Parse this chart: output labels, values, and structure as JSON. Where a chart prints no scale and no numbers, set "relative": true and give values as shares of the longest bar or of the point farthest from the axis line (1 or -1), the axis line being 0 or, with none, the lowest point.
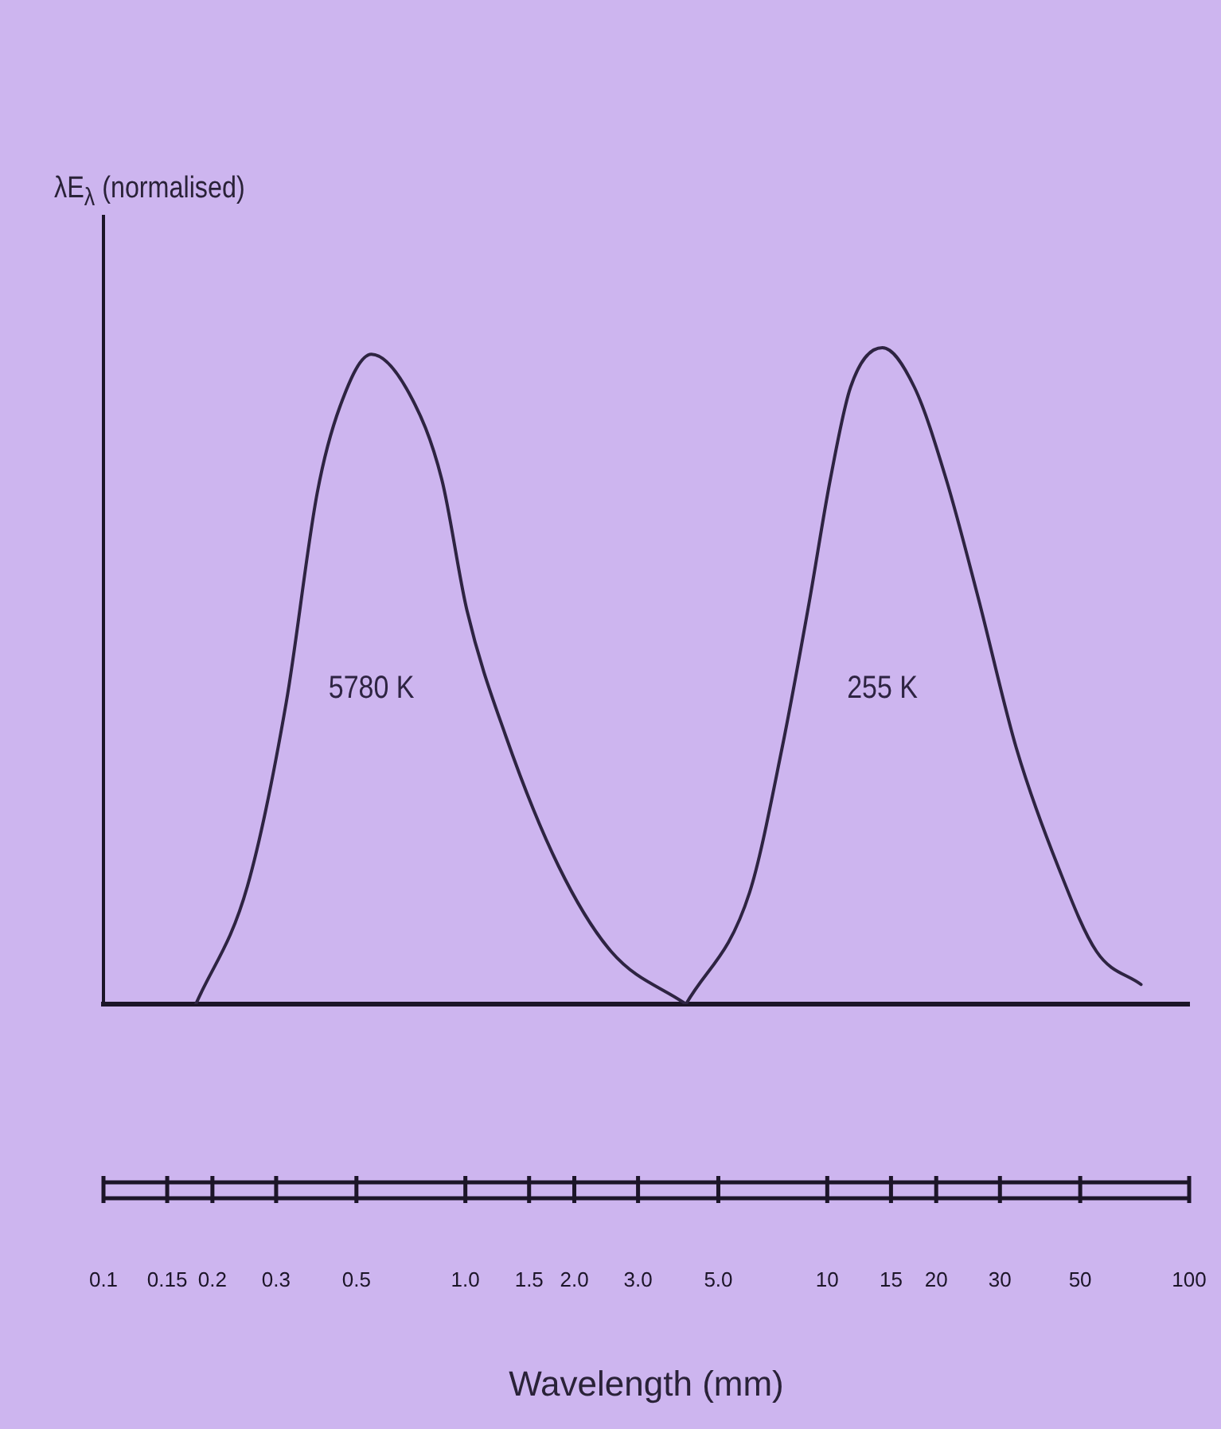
{
  "chart_data": {
    "type": "line",
    "ylabel": "λE$_{λ}$ (normalised)",
    "xlabel": "Wavelength (mm)",
    "relative": true,
    "log": "x",
    "xlim": [
      0.1,
      100
    ],
    "xticks": [
      0.1,
      0.15,
      0.2,
      0.3,
      0.5,
      {
        "value": 1,
        "label": "1.0"
      },
      1.5,
      {
        "value": 2,
        "label": "2.0"
      },
      {
        "value": 3,
        "label": "3.0"
      },
      {
        "value": 5,
        "label": "5.0"
      },
      10,
      15,
      20,
      30,
      50,
      100
    ],
    "series": [
      {
        "name": "5780 K",
        "color": "#2e2442",
        "x": [
          0.18,
          0.25,
          0.32,
          0.39,
          0.45,
          0.55,
          0.7,
          0.86,
          1.01,
          1.29,
          1.81,
          2.53,
          4.07
        ],
        "values": [
          0,
          0.18,
          0.46,
          0.78,
          0.91,
          0.99,
          0.93,
          0.8,
          0.6,
          0.41,
          0.21,
          0.08,
          0
        ]
      },
      {
        "name": "255 K",
        "color": "#2e2442",
        "x": [
          4.07,
          6.1,
          7.5,
          8.9,
          10.2,
          11.6,
          14.2,
          17.4,
          21.3,
          26.1,
          33.3,
          43.4,
          55.5,
          73.6
        ],
        "values": [
          0,
          0.17,
          0.39,
          0.61,
          0.8,
          0.94,
          1,
          0.94,
          0.8,
          0.62,
          0.39,
          0.21,
          0.08,
          0.03
        ]
      }
    ],
    "grid": false,
    "legend": false,
    "marker": "none",
    "line_style": "solid"
  }
}
